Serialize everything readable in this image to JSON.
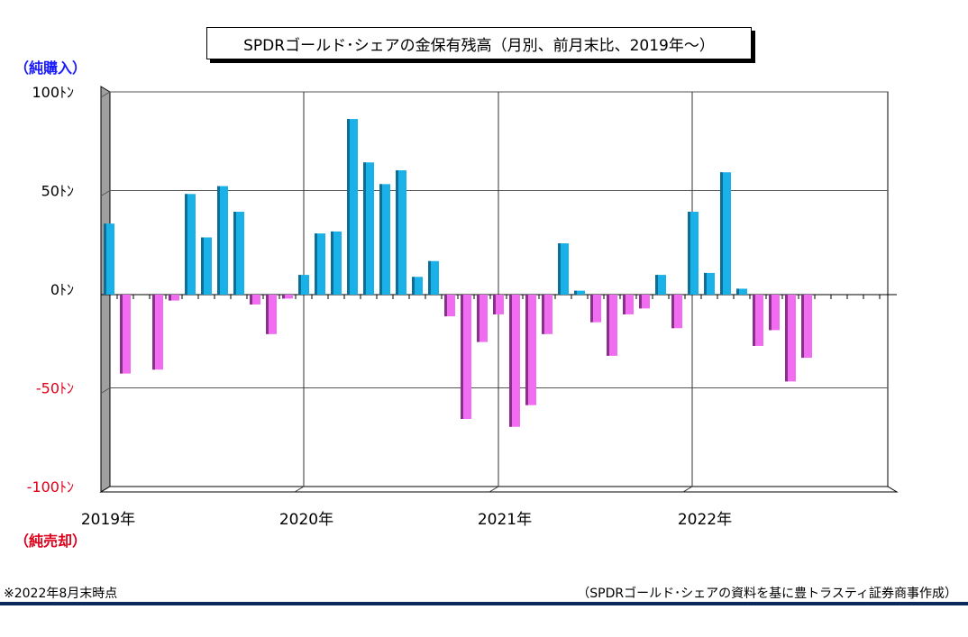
{
  "chart_data": {
    "type": "bar",
    "title": "SPDRゴールド･シェアの金保有残高（月別、前月末比、2019年～）",
    "buy_label": "（純購入）",
    "sell_label": "（純売却）",
    "y_ticks": [
      "100ﾄﾝ",
      "50ﾄﾝ",
      "0ﾄﾝ",
      "-50ﾄﾝ",
      "-100ﾄﾝ"
    ],
    "ylim": [
      -100,
      100
    ],
    "x_labels": [
      "2019年",
      "2020年",
      "2021年",
      "2022年"
    ],
    "grid": true,
    "colors": {
      "positive": "#1ab0e8",
      "negative": "#f06cf0",
      "positive_dark": "#0d6e96",
      "negative_dark": "#8a2f8a",
      "axis_wall": "#a0a0a0",
      "sell_text": "#e0001a",
      "buy_text": "#1a1aff"
    },
    "categories": [
      "2019-01",
      "2019-02",
      "2019-03",
      "2019-04",
      "2019-05",
      "2019-06",
      "2019-07",
      "2019-08",
      "2019-09",
      "2019-10",
      "2019-11",
      "2019-12",
      "2020-01",
      "2020-02",
      "2020-03",
      "2020-04",
      "2020-05",
      "2020-06",
      "2020-07",
      "2020-08",
      "2020-09",
      "2020-10",
      "2020-11",
      "2020-12",
      "2021-01",
      "2021-02",
      "2021-03",
      "2021-04",
      "2021-05",
      "2021-06",
      "2021-07",
      "2021-08",
      "2021-09",
      "2021-10",
      "2021-11",
      "2021-12",
      "2022-01",
      "2022-02",
      "2022-03",
      "2022-04",
      "2022-05",
      "2022-06",
      "2022-07",
      "2022-08"
    ],
    "values": [
      36,
      -40,
      0,
      -38,
      -3,
      51,
      29,
      55,
      42,
      -5,
      -20,
      -2,
      10,
      31,
      32,
      89,
      67,
      56,
      63,
      9,
      17,
      -11,
      -63,
      -24,
      -10,
      -67,
      -56,
      -20,
      26,
      2,
      -14,
      -31,
      -10,
      -7,
      10,
      -17,
      42,
      11,
      62,
      3,
      -26,
      -18,
      -44,
      -32
    ]
  },
  "footnotes": {
    "left": "※2022年8月末時点",
    "right": "（SPDRゴールド･シェアの資料を基に豊トラスティ証券商事作成）"
  }
}
